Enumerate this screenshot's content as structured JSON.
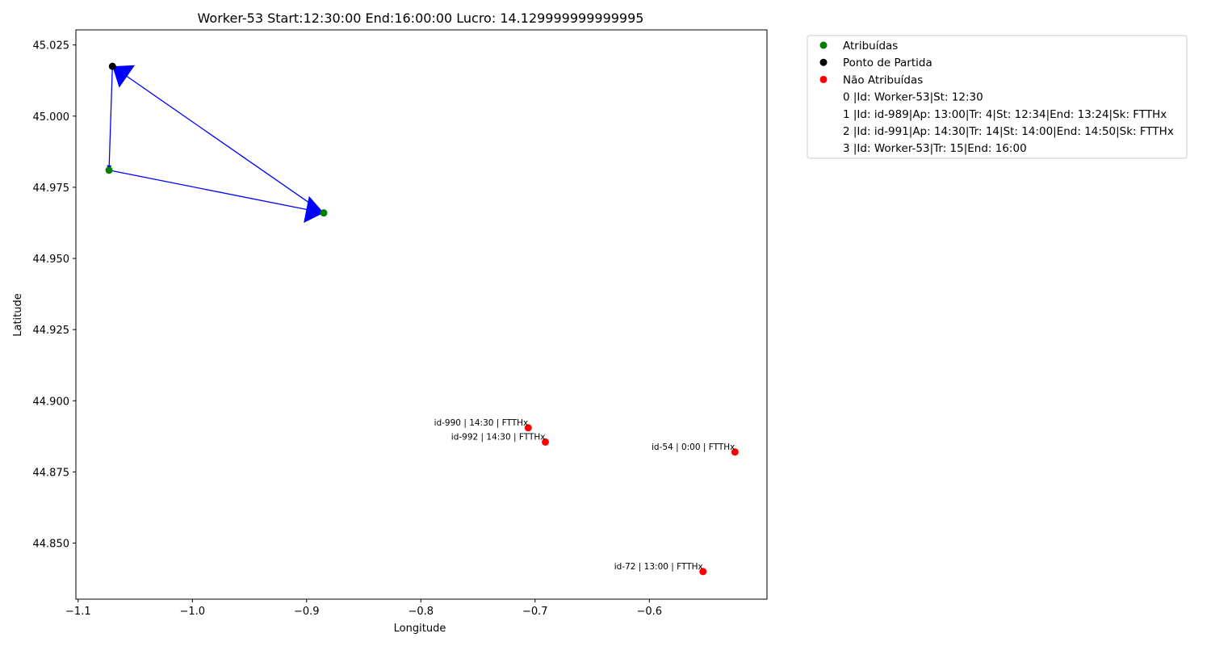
{
  "chart_data": {
    "type": "scatter",
    "title": "Worker-53 Start:12:30:00 End:16:00:00 Lucro: 14.129999999999995",
    "xlabel": "Longitude",
    "ylabel": "Latitude",
    "xlim": [
      -1.102,
      -0.497
    ],
    "ylim": [
      44.8303,
      45.0303
    ],
    "xticks": [
      -1.1,
      -1.0,
      -0.9,
      -0.8,
      -0.7,
      -0.6
    ],
    "xtick_labels": [
      "−1.1",
      "−1.0",
      "−0.9",
      "−0.8",
      "−0.7",
      "−0.6"
    ],
    "yticks": [
      44.85,
      44.875,
      44.9,
      44.925,
      44.95,
      44.975,
      45.0,
      45.025
    ],
    "ytick_labels": [
      "44.850",
      "44.875",
      "44.900",
      "44.925",
      "44.950",
      "44.975",
      "45.000",
      "45.025"
    ],
    "grid": false,
    "legend_position": "outside upper right",
    "series": [
      {
        "name": "Atribuídas",
        "color": "#008000",
        "points": [
          {
            "x": -1.073,
            "y": 44.981
          },
          {
            "x": -0.885,
            "y": 44.966
          }
        ]
      },
      {
        "name": "Ponto de Partida",
        "color": "#000000",
        "points": [
          {
            "x": -1.07,
            "y": 45.0175
          }
        ]
      },
      {
        "name": "Não Atribuídas",
        "color": "#ff0000",
        "points": [
          {
            "x": -0.706,
            "y": 44.8905,
            "label": "id-990 | 14:30 | FTTHx"
          },
          {
            "x": -0.691,
            "y": 44.8855,
            "label": "id-992 | 14:30 | FTTHx"
          },
          {
            "x": -0.525,
            "y": 44.882,
            "label": "id-54 | 0:00 | FTTHx"
          },
          {
            "x": -0.553,
            "y": 44.84,
            "label": "id-72 | 13:00 | FTTHx"
          }
        ]
      }
    ],
    "route": {
      "color": "#0000ff",
      "arrows": [
        {
          "from": {
            "x": -1.07,
            "y": 45.0175
          },
          "to": {
            "x": -1.073,
            "y": 44.981
          },
          "head": "small"
        },
        {
          "from": {
            "x": -1.073,
            "y": 44.981
          },
          "to": {
            "x": -0.885,
            "y": 44.966
          },
          "head": "large"
        },
        {
          "from": {
            "x": -0.885,
            "y": 44.966
          },
          "to": {
            "x": -1.07,
            "y": 45.0175
          },
          "head": "large"
        }
      ]
    },
    "legend_entries": [
      {
        "label": "Atribuídas",
        "color": "#008000",
        "marker": true
      },
      {
        "label": "Ponto de Partida",
        "color": "#000000",
        "marker": true
      },
      {
        "label": "Não Atribuídas",
        "color": "#ff0000",
        "marker": true
      },
      {
        "label": "0 |Id: Worker-53|St: 12:30",
        "marker": false
      },
      {
        "label": "1 |Id: id-989|Ap: 13:00|Tr: 4|St: 12:34|End: 13:24|Sk: FTTHx",
        "marker": false
      },
      {
        "label": "2 |Id: id-991|Ap: 14:30|Tr: 14|St: 14:00|End: 14:50|Sk: FTTHx",
        "marker": false
      },
      {
        "label": "3 |Id: Worker-53|Tr: 15|End: 16:00",
        "marker": false
      }
    ]
  }
}
